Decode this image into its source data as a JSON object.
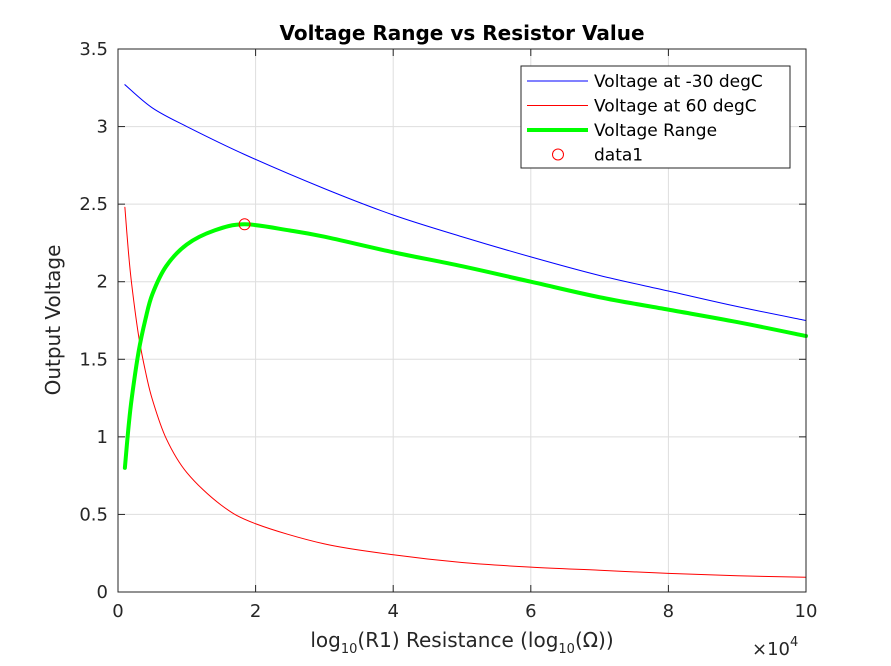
{
  "chart_data": {
    "type": "line",
    "title": "Voltage Range vs Resistor Value",
    "xlabel": {
      "prefix": "log",
      "sub1": "10",
      "mid": "(R1) Resistance (log",
      "sub2": "10",
      "suffix": "(Ω))"
    },
    "ylabel": "Output Voltage",
    "x_multiplier": {
      "base": "×10",
      "exp": "4"
    },
    "xlim": [
      0,
      100000
    ],
    "ylim": [
      0,
      3.5
    ],
    "xticks": [
      0,
      20000,
      40000,
      60000,
      80000,
      100000
    ],
    "xtick_labels": [
      "0",
      "2",
      "4",
      "6",
      "8",
      "10"
    ],
    "yticks": [
      0,
      0.5,
      1,
      1.5,
      2,
      2.5,
      3,
      3.5
    ],
    "ytick_labels": [
      "0",
      "0.5",
      "1",
      "1.5",
      "2",
      "2.5",
      "3",
      "3.5"
    ],
    "grid": true,
    "legend_position": "top-right",
    "series": [
      {
        "name": "Voltage at -30 degC",
        "color": "#0000ff",
        "line_width": "thin",
        "x": [
          1000,
          5000,
          10000,
          18400,
          30000,
          40000,
          50000,
          60000,
          70000,
          80000,
          90000,
          100000
        ],
        "y": [
          3.27,
          3.12,
          3.0,
          2.82,
          2.6,
          2.43,
          2.29,
          2.16,
          2.04,
          1.94,
          1.84,
          1.75
        ]
      },
      {
        "name": "Voltage at 60 degC",
        "color": "#ff0000",
        "line_width": "thin",
        "x": [
          1000,
          1500,
          2000,
          3000,
          4000,
          5000,
          7000,
          10000,
          15000,
          20000,
          30000,
          40000,
          50000,
          60000,
          70000,
          80000,
          90000,
          100000
        ],
        "y": [
          2.48,
          2.2,
          1.98,
          1.65,
          1.42,
          1.24,
          0.99,
          0.77,
          0.56,
          0.44,
          0.31,
          0.24,
          0.19,
          0.16,
          0.14,
          0.12,
          0.105,
          0.095
        ]
      },
      {
        "name": "Voltage Range",
        "color": "#00ff00",
        "line_width": "thick",
        "x": [
          1000,
          1500,
          2000,
          3000,
          4000,
          5000,
          7000,
          10000,
          14000,
          18400,
          25000,
          30000,
          40000,
          50000,
          60000,
          70000,
          80000,
          90000,
          100000
        ],
        "y": [
          0.8,
          1.05,
          1.25,
          1.55,
          1.76,
          1.92,
          2.1,
          2.24,
          2.33,
          2.37,
          2.33,
          2.29,
          2.19,
          2.1,
          2.0,
          1.9,
          1.82,
          1.74,
          1.65
        ]
      },
      {
        "name": "data1",
        "color": "#ff0000",
        "marker": "circle",
        "x": [
          18400
        ],
        "y": [
          2.37
        ]
      }
    ]
  }
}
